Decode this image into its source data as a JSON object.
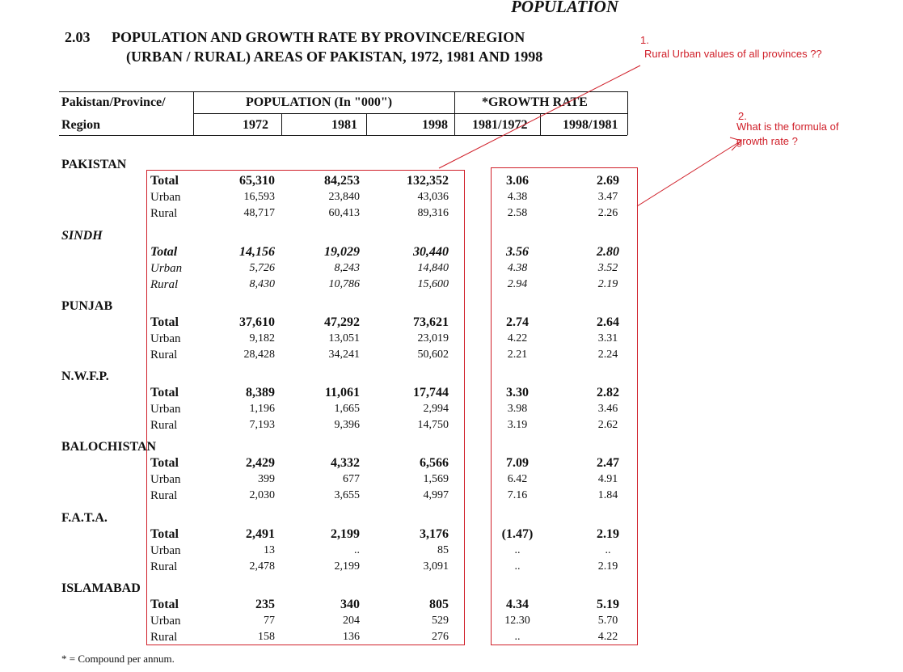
{
  "header": {
    "section": "POPULATION"
  },
  "title": {
    "number": "2.03",
    "line1": "POPULATION AND GROWTH RATE BY PROVINCE/REGION",
    "line2": "(URBAN / RURAL) AREAS OF PAKISTAN, 1972, 1981 AND 1998"
  },
  "table": {
    "col_header_region_1": "Pakistan/Province/",
    "col_header_region_2": "Region",
    "population_header": "POPULATION (In \"000\")",
    "growth_header": "*GROWTH RATE",
    "years": [
      "1972",
      "1981",
      "1998"
    ],
    "growth_periods": [
      "1981/1972",
      "1998/1981"
    ],
    "regions": [
      {
        "name": "PAKISTAN",
        "italic": false,
        "rows": [
          {
            "label": "Total",
            "values": [
              "65,310",
              "84,253",
              "132,352"
            ],
            "growth": [
              "3.06",
              "2.69"
            ]
          },
          {
            "label": "Urban",
            "values": [
              "16,593",
              "23,840",
              "43,036"
            ],
            "growth": [
              "4.38",
              "3.47"
            ]
          },
          {
            "label": "Rural",
            "values": [
              "48,717",
              "60,413",
              "89,316"
            ],
            "growth": [
              "2.58",
              "2.26"
            ]
          }
        ]
      },
      {
        "name": "SINDH",
        "italic": true,
        "rows": [
          {
            "label": "Total",
            "values": [
              "14,156",
              "19,029",
              "30,440"
            ],
            "growth": [
              "3.56",
              "2.80"
            ]
          },
          {
            "label": "Urban",
            "values": [
              "5,726",
              "8,243",
              "14,840"
            ],
            "growth": [
              "4.38",
              "3.52"
            ]
          },
          {
            "label": "Rural",
            "values": [
              "8,430",
              "10,786",
              "15,600"
            ],
            "growth": [
              "2.94",
              "2.19"
            ]
          }
        ]
      },
      {
        "name": "PUNJAB",
        "italic": false,
        "rows": [
          {
            "label": "Total",
            "values": [
              "37,610",
              "47,292",
              "73,621"
            ],
            "growth": [
              "2.74",
              "2.64"
            ]
          },
          {
            "label": "Urban",
            "values": [
              "9,182",
              "13,051",
              "23,019"
            ],
            "growth": [
              "4.22",
              "3.31"
            ]
          },
          {
            "label": "Rural",
            "values": [
              "28,428",
              "34,241",
              "50,602"
            ],
            "growth": [
              "2.21",
              "2.24"
            ]
          }
        ]
      },
      {
        "name": "N.W.F.P.",
        "italic": false,
        "rows": [
          {
            "label": "Total",
            "values": [
              "8,389",
              "11,061",
              "17,744"
            ],
            "growth": [
              "3.30",
              "2.82"
            ]
          },
          {
            "label": "Urban",
            "values": [
              "1,196",
              "1,665",
              "2,994"
            ],
            "growth": [
              "3.98",
              "3.46"
            ]
          },
          {
            "label": "Rural",
            "values": [
              "7,193",
              "9,396",
              "14,750"
            ],
            "growth": [
              "3.19",
              "2.62"
            ]
          }
        ]
      },
      {
        "name": "BALOCHISTAN",
        "italic": false,
        "rows": [
          {
            "label": "Total",
            "values": [
              "2,429",
              "4,332",
              "6,566"
            ],
            "growth": [
              "7.09",
              "2.47"
            ]
          },
          {
            "label": "Urban",
            "values": [
              "399",
              "677",
              "1,569"
            ],
            "growth": [
              "6.42",
              "4.91"
            ]
          },
          {
            "label": "Rural",
            "values": [
              "2,030",
              "3,655",
              "4,997"
            ],
            "growth": [
              "7.16",
              "1.84"
            ]
          }
        ]
      },
      {
        "name": "F.A.T.A.",
        "italic": false,
        "rows": [
          {
            "label": "Total",
            "values": [
              "2,491",
              "2,199",
              "3,176"
            ],
            "growth": [
              "(1.47)",
              "2.19"
            ]
          },
          {
            "label": "Urban",
            "values": [
              "13",
              "..",
              "85"
            ],
            "growth": [
              "..",
              ".."
            ]
          },
          {
            "label": "Rural",
            "values": [
              "2,478",
              "2,199",
              "3,091"
            ],
            "growth": [
              "..",
              "2.19"
            ]
          }
        ]
      },
      {
        "name": "ISLAMABAD",
        "italic": false,
        "rows": [
          {
            "label": "Total",
            "values": [
              "235",
              "340",
              "805"
            ],
            "growth": [
              "4.34",
              "5.19"
            ]
          },
          {
            "label": "Urban",
            "values": [
              "77",
              "204",
              "529"
            ],
            "growth": [
              "12.30",
              "5.70"
            ]
          },
          {
            "label": "Rural",
            "values": [
              "158",
              "136",
              "276"
            ],
            "growth": [
              "..",
              "4.22"
            ]
          }
        ]
      }
    ]
  },
  "footnote": "* = Compound per annum.",
  "annotations": {
    "note1_number": "1.",
    "note1_text": "Rural Urban values of all provinces ??",
    "note2_number": "2.",
    "note2_text_1": "What is the formula of",
    "note2_text_2": "growth rate ?",
    "color": "#d0202a"
  }
}
